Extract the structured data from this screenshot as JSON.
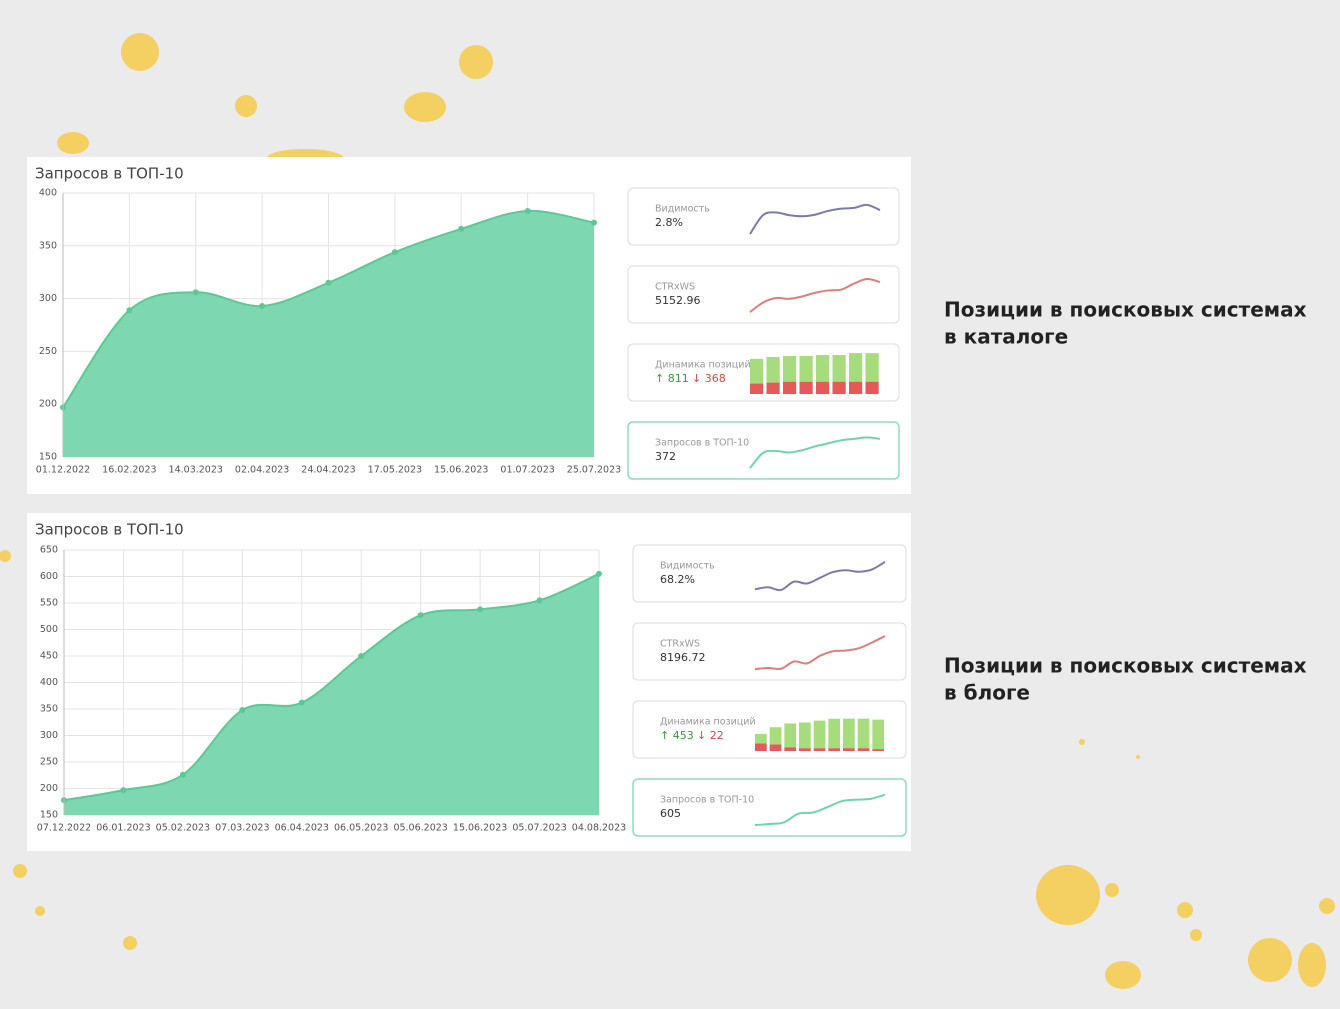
{
  "panels": [
    {
      "caption": [
        "Позиции в поисковых системах",
        "в каталоге"
      ],
      "chart": {
        "type": "area",
        "title": "Запросов в ТОП-10",
        "x": [
          "01.12.2022",
          "16.02.2023",
          "14.03.2023",
          "02.04.2023",
          "24.04.2023",
          "17.05.2023",
          "15.06.2023",
          "01.07.2023",
          "25.07.2023"
        ],
        "values": [
          197,
          289,
          306,
          293,
          315,
          344,
          366,
          383,
          372
        ],
        "ylim": [
          150,
          400
        ],
        "yticks": [
          150,
          200,
          250,
          300,
          350,
          400
        ],
        "grid": true,
        "color": "#7dd8b2",
        "line_color": "#5cc896"
      },
      "cards": [
        {
          "type": "line",
          "label": "Видимость",
          "value": "2.8%",
          "color": "#7b7ba8",
          "values": [
            5,
            55,
            62,
            55,
            52,
            56,
            66,
            72,
            74,
            82,
            68
          ]
        },
        {
          "type": "line",
          "label": "CTRxWS",
          "value": "5152.96",
          "color": "#e07d7d",
          "values": [
            5,
            30,
            42,
            40,
            46,
            56,
            62,
            64,
            80,
            92,
            84
          ]
        },
        {
          "type": "bars",
          "label": "Динамика позиций",
          "up": "↑ 811",
          "down": "↓ 368",
          "up_color": "#a6dc7c",
          "down_color": "#e45a5a",
          "up_values": [
            26,
            27,
            27,
            27,
            28,
            28,
            30,
            30
          ],
          "down_values": [
            11,
            12,
            13,
            13,
            13,
            13,
            13,
            13
          ]
        },
        {
          "type": "line",
          "label": "Запросов в ТОП-10",
          "value": 372,
          "color": "#6fd4ae",
          "values": [
            5,
            45,
            50,
            46,
            52,
            62,
            70,
            78,
            82,
            86,
            82
          ]
        }
      ]
    },
    {
      "caption": [
        "Позиции в поисковых системах",
        "в блоге"
      ],
      "chart": {
        "type": "area",
        "title": "Запросов в ТОП-10",
        "x": [
          "07.12.2022",
          "06.01.2023",
          "05.02.2023",
          "07.03.2023",
          "06.04.2023",
          "06.05.2023",
          "05.06.2023",
          "15.06.2023",
          "05.07.2023",
          "04.08.2023"
        ],
        "values": [
          178,
          197,
          226,
          348,
          362,
          450,
          527,
          538,
          555,
          605
        ],
        "ylim": [
          150,
          650
        ],
        "yticks": [
          150,
          200,
          250,
          300,
          350,
          400,
          450,
          500,
          550,
          600,
          650
        ],
        "grid": true,
        "color": "#7dd8b2",
        "line_color": "#5cc896"
      },
      "cards": [
        {
          "type": "line",
          "label": "Видимость",
          "value": "68.2%",
          "color": "#7b7ba8",
          "values": [
            10,
            15,
            8,
            30,
            25,
            40,
            55,
            60,
            56,
            62,
            82
          ]
        },
        {
          "type": "line",
          "label": "CTRxWS",
          "value": "8196.72",
          "color": "#e07d7d",
          "values": [
            5,
            8,
            6,
            25,
            20,
            40,
            52,
            54,
            60,
            75,
            92
          ]
        },
        {
          "type": "bars",
          "label": "Динамика позиций",
          "up": "↑ 453",
          "down": "↓ 22",
          "up_color": "#a6dc7c",
          "down_color": "#e45a5a",
          "up_values": [
            10,
            18,
            25,
            27,
            29,
            31,
            31,
            31,
            31
          ],
          "down_values": [
            8,
            7,
            4,
            3,
            3,
            3,
            3,
            3,
            2
          ]
        },
        {
          "type": "line",
          "label": "Запросов в ТОП-10",
          "value": 605,
          "color": "#6fd4ae",
          "values": [
            5,
            8,
            12,
            35,
            38,
            52,
            68,
            72,
            74,
            85
          ]
        }
      ]
    }
  ]
}
